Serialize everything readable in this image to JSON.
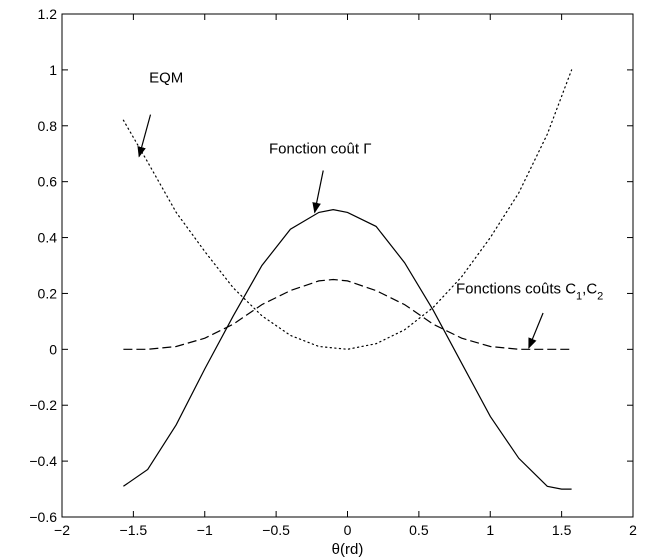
{
  "chart_data": {
    "type": "line",
    "title": "",
    "xlabel": "θ(rd)",
    "ylabel": "",
    "xlim": [
      -2,
      2
    ],
    "ylim": [
      -0.6,
      1.2
    ],
    "xticks": [
      -2,
      -1.5,
      -1,
      -0.5,
      0,
      0.5,
      1,
      1.5,
      2
    ],
    "xtick_labels": [
      "−2",
      "−1.5",
      "−1",
      "−0.5",
      "0",
      "0.5",
      "1",
      "1.5",
      "2"
    ],
    "yticks": [
      -0.6,
      -0.4,
      -0.2,
      0,
      0.2,
      0.4,
      0.6,
      0.8,
      1,
      1.2
    ],
    "ytick_labels": [
      "−0.6",
      "−0.4",
      "−0.2",
      "0",
      "0.2",
      "0.4",
      "0.6",
      "0.8",
      "1",
      "1.2"
    ],
    "grid": false,
    "legend": "none",
    "series": [
      {
        "style": "dotted",
        "x": [
          -1.57,
          -1.4,
          -1.2,
          -1.0,
          -0.8,
          -0.6,
          -0.4,
          -0.2,
          0.0,
          0.2,
          0.4,
          0.6,
          0.8,
          1.0,
          1.2,
          1.4,
          1.57
        ],
        "y": [
          0.82,
          0.67,
          0.49,
          0.35,
          0.22,
          0.12,
          0.05,
          0.01,
          0.0,
          0.02,
          0.07,
          0.15,
          0.26,
          0.4,
          0.56,
          0.77,
          1.0
        ]
      },
      {
        "style": "solid",
        "x": [
          -1.57,
          -1.4,
          -1.2,
          -1.0,
          -0.8,
          -0.6,
          -0.4,
          -0.2,
          -0.1,
          0.0,
          0.2,
          0.4,
          0.6,
          0.8,
          1.0,
          1.2,
          1.4,
          1.5,
          1.57
        ],
        "y": [
          -0.49,
          -0.43,
          -0.27,
          -0.07,
          0.12,
          0.3,
          0.43,
          0.49,
          0.5,
          0.49,
          0.44,
          0.31,
          0.14,
          -0.05,
          -0.24,
          -0.39,
          -0.49,
          -0.5,
          -0.5
        ]
      },
      {
        "style": "dashed",
        "x": [
          -1.57,
          -1.4,
          -1.2,
          -1.0,
          -0.8,
          -0.6,
          -0.4,
          -0.2,
          -0.1,
          0.0,
          0.2,
          0.4,
          0.6,
          0.8,
          1.0,
          1.2,
          1.4,
          1.57
        ],
        "y": [
          0.0,
          0.0,
          0.01,
          0.04,
          0.09,
          0.16,
          0.21,
          0.245,
          0.25,
          0.245,
          0.21,
          0.16,
          0.09,
          0.04,
          0.01,
          0.0,
          0.0,
          0.0
        ]
      }
    ],
    "annotations": [
      {
        "text": "EQM",
        "text_xy": [
          -1.39,
          0.955
        ],
        "arrow_from": [
          -1.38,
          0.84
        ],
        "arrow_to": [
          -1.46,
          0.69
        ]
      },
      {
        "text": "Fonction coût Γ",
        "text_xy": [
          -0.55,
          0.7
        ],
        "arrow_from": [
          -0.17,
          0.64
        ],
        "arrow_to": [
          -0.23,
          0.49
        ]
      },
      {
        "text": "Fonctions coûts C1,C2",
        "text_xy": [
          0.76,
          0.2
        ],
        "arrow_from": [
          1.37,
          0.13
        ],
        "arrow_to": [
          1.27,
          0.005
        ]
      }
    ]
  }
}
